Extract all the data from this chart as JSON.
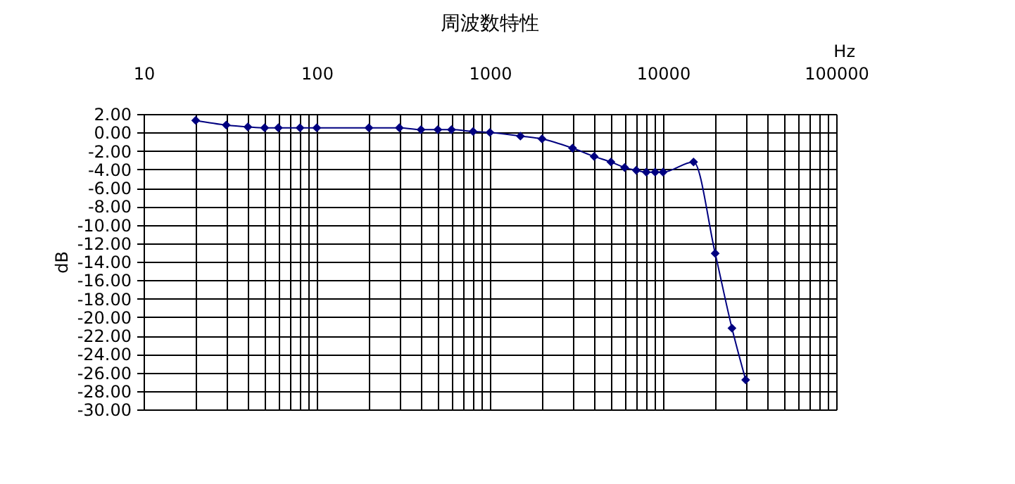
{
  "chart_data": {
    "type": "line",
    "title": "周波数特性",
    "xlabel": "Hz",
    "ylabel": "dB",
    "log": "x",
    "grid": true,
    "marker": "diamond",
    "line_style": "solid",
    "x": [
      20,
      30,
      40,
      50,
      60,
      80,
      100,
      200,
      300,
      400,
      500,
      600,
      800,
      1000,
      1500,
      2000,
      3000,
      4000,
      5000,
      6000,
      7000,
      8000,
      9000,
      10000,
      15000,
      20000,
      25000,
      30000
    ],
    "series": [
      {
        "color": "#000080",
        "values": [
          1.3,
          0.8,
          0.6,
          0.5,
          0.5,
          0.5,
          0.5,
          0.5,
          0.5,
          0.3,
          0.3,
          0.3,
          0.1,
          0.0,
          -0.4,
          -0.7,
          -1.7,
          -2.6,
          -3.2,
          -3.8,
          -4.1,
          -4.3,
          -4.3,
          -4.3,
          -3.2,
          -13.1,
          -21.2,
          -26.8
        ]
      }
    ],
    "xlim": [
      10,
      100000
    ],
    "xticks": [
      10,
      {
        "value": 20,
        "label": null
      },
      {
        "value": 30,
        "label": null
      },
      {
        "value": 40,
        "label": null
      },
      {
        "value": 50,
        "label": null
      },
      {
        "value": 60,
        "label": null
      },
      {
        "value": 70,
        "label": null
      },
      {
        "value": 80,
        "label": null
      },
      {
        "value": 90,
        "label": null
      },
      100,
      {
        "value": 200,
        "label": null
      },
      {
        "value": 300,
        "label": null
      },
      {
        "value": 400,
        "label": null
      },
      {
        "value": 500,
        "label": null
      },
      {
        "value": 600,
        "label": null
      },
      {
        "value": 700,
        "label": null
      },
      {
        "value": 800,
        "label": null
      },
      {
        "value": 900,
        "label": null
      },
      1000,
      {
        "value": 2000,
        "label": null
      },
      {
        "value": 3000,
        "label": null
      },
      {
        "value": 4000,
        "label": null
      },
      {
        "value": 5000,
        "label": null
      },
      {
        "value": 6000,
        "label": null
      },
      {
        "value": 7000,
        "label": null
      },
      {
        "value": 8000,
        "label": null
      },
      {
        "value": 9000,
        "label": null
      },
      10000,
      {
        "value": 20000,
        "label": null
      },
      {
        "value": 30000,
        "label": null
      },
      {
        "value": 40000,
        "label": null
      },
      {
        "value": 50000,
        "label": null
      },
      {
        "value": 60000,
        "label": null
      },
      {
        "value": 70000,
        "label": null
      },
      {
        "value": 80000,
        "label": null
      },
      {
        "value": 90000,
        "label": null
      },
      100000
    ],
    "ylim": [
      -30,
      2
    ],
    "yticks": [
      {
        "value": 2,
        "label": "2.00"
      },
      {
        "value": 0,
        "label": "0.00"
      },
      {
        "value": -2,
        "label": "-2.00"
      },
      {
        "value": -4,
        "label": "-4.00"
      },
      {
        "value": -6,
        "label": "-6.00"
      },
      {
        "value": -8,
        "label": "-8.00"
      },
      {
        "value": -10,
        "label": "-10.00"
      },
      {
        "value": -12,
        "label": "-12.00"
      },
      {
        "value": -14,
        "label": "-14.00"
      },
      {
        "value": -16,
        "label": "-16.00"
      },
      {
        "value": -18,
        "label": "-18.00"
      },
      {
        "value": -20,
        "label": "-20.00"
      },
      {
        "value": -22,
        "label": "-22.00"
      },
      {
        "value": -24,
        "label": "-24.00"
      },
      {
        "value": -26,
        "label": "-26.00"
      },
      {
        "value": -28,
        "label": "-28.00"
      },
      {
        "value": -30,
        "label": "-30.00"
      }
    ]
  }
}
